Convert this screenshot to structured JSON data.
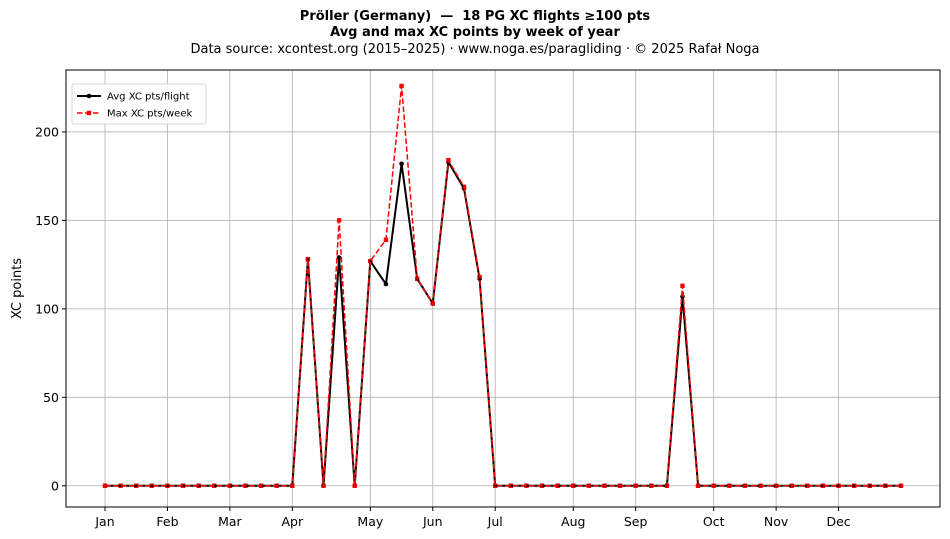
{
  "title": {
    "line1": "Pröller (Germany)  —  18 PG XC flights ≥100 pts",
    "line2": "Avg and max XC points by week of year",
    "line3": "Data source: xcontest.org (2015–2025)  ·  www.noga.es/paragliding  ·  © 2025 Rafał Noga"
  },
  "chart_data": {
    "type": "line",
    "title": "Pröller (Germany)  —  18 PG XC flights ≥100 pts",
    "subtitle": "Avg and max XC points by week of year",
    "xlabel": "",
    "ylabel": "XC points",
    "x_unit": "week of year",
    "xlim": [
      -1.5,
      54.5
    ],
    "ylim": [
      -12,
      235
    ],
    "x": [
      1,
      2,
      3,
      4,
      5,
      6,
      7,
      8,
      9,
      10,
      11,
      12,
      13,
      14,
      15,
      16,
      17,
      18,
      19,
      20,
      21,
      22,
      23,
      24,
      25,
      26,
      27,
      28,
      29,
      30,
      31,
      32,
      33,
      34,
      35,
      36,
      37,
      38,
      39,
      40,
      41,
      42,
      43,
      44,
      45,
      46,
      47,
      48,
      49,
      50,
      51,
      52
    ],
    "x_ticks": [
      {
        "label": "Jan",
        "x": 1
      },
      {
        "label": "Feb",
        "x": 5
      },
      {
        "label": "Mar",
        "x": 9
      },
      {
        "label": "Apr",
        "x": 13
      },
      {
        "label": "May",
        "x": 18
      },
      {
        "label": "Jun",
        "x": 22
      },
      {
        "label": "Jul",
        "x": 26
      },
      {
        "label": "Aug",
        "x": 31
      },
      {
        "label": "Sep",
        "x": 35
      },
      {
        "label": "Oct",
        "x": 40
      },
      {
        "label": "Nov",
        "x": 44
      },
      {
        "label": "Dec",
        "x": 48
      }
    ],
    "y_ticks": [
      0,
      50,
      100,
      150,
      200
    ],
    "grid": true,
    "legend": "top-left",
    "series": [
      {
        "name": "Avg XC pts/flight",
        "color": "#000000",
        "style": "solid",
        "marker": "circle",
        "values": [
          0,
          0,
          0,
          0,
          0,
          0,
          0,
          0,
          0,
          0,
          0,
          0,
          0,
          128,
          0,
          129,
          0,
          127,
          114,
          182,
          117,
          103,
          183,
          168,
          117,
          0,
          0,
          0,
          0,
          0,
          0,
          0,
          0,
          0,
          0,
          0,
          0,
          107,
          0,
          0,
          0,
          0,
          0,
          0,
          0,
          0,
          0,
          0,
          0,
          0,
          0,
          0
        ]
      },
      {
        "name": "Max XC pts/week",
        "color": "#ff0000",
        "style": "dashed",
        "marker": "square",
        "values": [
          0,
          0,
          0,
          0,
          0,
          0,
          0,
          0,
          0,
          0,
          0,
          0,
          0,
          128,
          0,
          150,
          0,
          127,
          139,
          226,
          117,
          103,
          184,
          169,
          118,
          0,
          0,
          0,
          0,
          0,
          0,
          0,
          0,
          0,
          0,
          0,
          0,
          113,
          0,
          0,
          0,
          0,
          0,
          0,
          0,
          0,
          0,
          0,
          0,
          0,
          0,
          0
        ]
      }
    ]
  }
}
